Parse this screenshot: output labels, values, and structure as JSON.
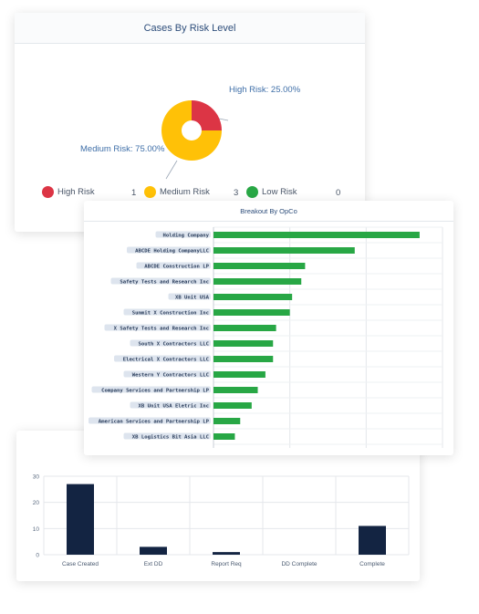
{
  "risk_card": {
    "title": "Cases By Risk Level",
    "donut_labels": {
      "high": "High Risk: 25.00%",
      "medium": "Medium Risk: 75.00%"
    },
    "legend": [
      {
        "label": "High Risk",
        "count": "1",
        "color": "#dc3545"
      },
      {
        "label": "Medium Risk",
        "count": "3",
        "color": "#ffc107"
      },
      {
        "label": "Low Risk",
        "count": "0",
        "color": "#28a745"
      }
    ]
  },
  "opco_card": {
    "title": "Breakout By OpCo"
  },
  "chart_data": [
    {
      "type": "pie",
      "title": "Cases By Risk Level",
      "categories": [
        "High Risk",
        "Medium Risk",
        "Low Risk"
      ],
      "values": [
        1,
        3,
        0
      ],
      "colors": [
        "#dc3545",
        "#ffc107",
        "#28a745"
      ],
      "donut": true
    },
    {
      "type": "bar",
      "orientation": "horizontal",
      "title": "Breakout By OpCo",
      "categories": [
        "Holding Company",
        "ABCDE Holding CompanyLLC",
        "ABCDE Construction LP",
        "Safety Tests and Research Inc",
        "XB Unit USA",
        "Summit X Construction Inc",
        "X Safety Tests and Research Inc",
        "South X Contractors LLC",
        "Electrical X Contractors LLC",
        "Western Y Contractors LLC",
        "Company Services and Partnership LP",
        "XB Unit USA Eletric Inc",
        "American Services and Partnership LP",
        "XB Logistics Bit Asia LLC"
      ],
      "values": [
        27,
        18.5,
        12,
        11.5,
        10.3,
        10,
        8.2,
        7.8,
        7.8,
        6.8,
        5.8,
        5,
        3.5,
        2.8
      ],
      "xlim": [
        0,
        30
      ],
      "color": "#28a745",
      "grid": true
    },
    {
      "type": "bar",
      "categories": [
        "Case Created",
        "Ext DD",
        "Report Req",
        "DD Complete",
        "Complete"
      ],
      "values": [
        27,
        3,
        1,
        0,
        11
      ],
      "ylim": [
        0,
        30
      ],
      "yticks": [
        0,
        10,
        20,
        30
      ],
      "color": "#132442",
      "grid": true
    }
  ]
}
